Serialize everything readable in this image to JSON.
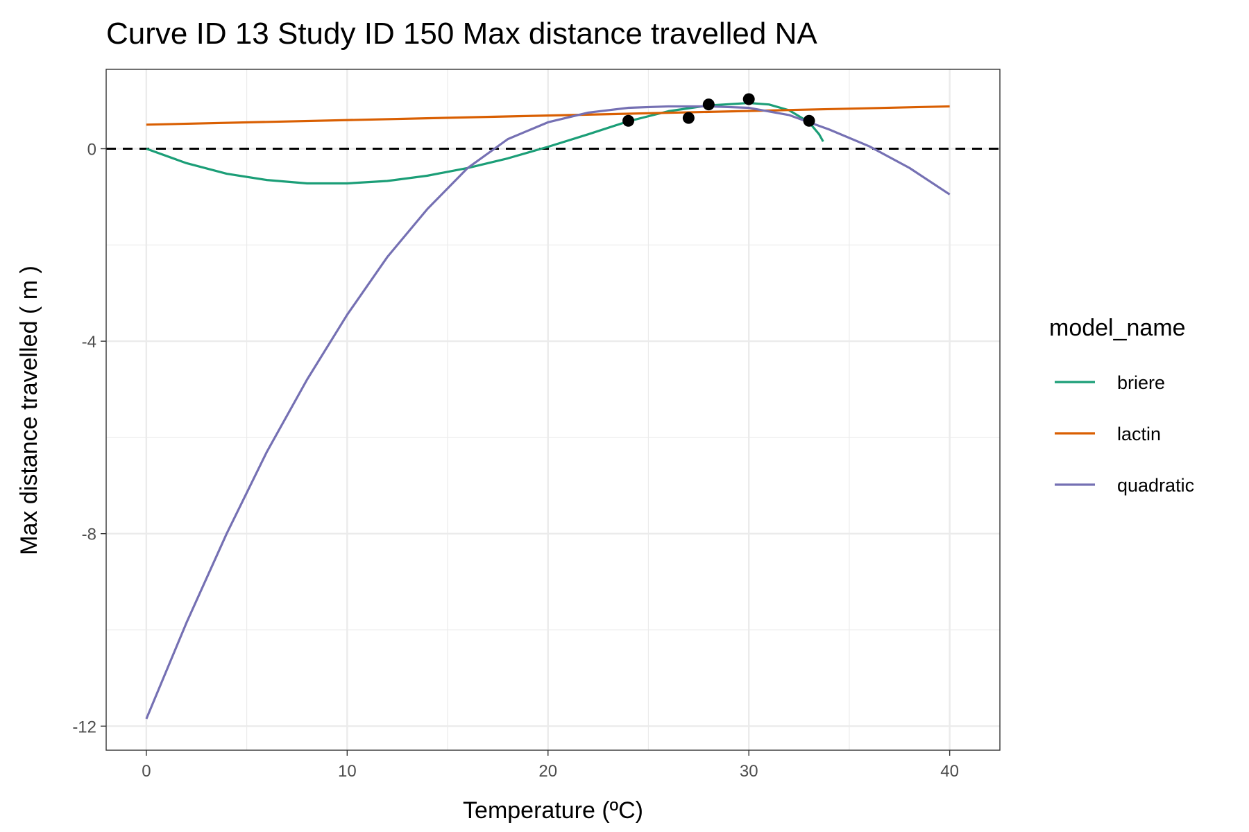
{
  "chart_data": {
    "type": "line",
    "title": "Curve ID 13 Study ID 150 Max distance travelled NA",
    "xlabel": "Temperature (ºC)",
    "ylabel": "Max distance travelled ( m )",
    "xlim": [
      -2,
      42.5
    ],
    "ylim": [
      -12.5,
      1.65
    ],
    "x_ticks": [
      0,
      10,
      20,
      30,
      40
    ],
    "y_ticks": [
      0,
      -4,
      -8,
      -12
    ],
    "x_tick_labels": [
      "0",
      "10",
      "20",
      "30",
      "40"
    ],
    "y_tick_labels": [
      "0",
      "-4",
      "-8",
      "-12"
    ],
    "grid": true,
    "reference_line": {
      "y": 0,
      "style": "dashed",
      "color": "#000000"
    },
    "legend": {
      "title": "model_name",
      "position": "right",
      "entries": [
        "briere",
        "lactin",
        "quadratic"
      ]
    },
    "series": [
      {
        "name": "briere",
        "color": "#1b9e77",
        "x": [
          0,
          2,
          4,
          6,
          8,
          10,
          12,
          14,
          16,
          18,
          20,
          22,
          24,
          26,
          28,
          30,
          31,
          32,
          33,
          33.5,
          33.7
        ],
        "y": [
          0,
          -0.3,
          -0.52,
          -0.65,
          -0.72,
          -0.72,
          -0.67,
          -0.56,
          -0.4,
          -0.2,
          0.04,
          0.3,
          0.57,
          0.78,
          0.9,
          0.95,
          0.92,
          0.8,
          0.55,
          0.3,
          0.15
        ]
      },
      {
        "name": "lactin",
        "color": "#d95f02",
        "x": [
          0,
          40
        ],
        "y": [
          0.5,
          0.88
        ]
      },
      {
        "name": "quadratic",
        "color": "#7570b3",
        "x": [
          0,
          2,
          4,
          6,
          8,
          10,
          12,
          14,
          16,
          18,
          20,
          22,
          24,
          26,
          28,
          30,
          32,
          34,
          36,
          38,
          40
        ],
        "y": [
          -11.85,
          -9.85,
          -8.0,
          -6.3,
          -4.8,
          -3.45,
          -2.25,
          -1.25,
          -0.4,
          0.2,
          0.55,
          0.75,
          0.85,
          0.88,
          0.88,
          0.85,
          0.7,
          0.4,
          0.05,
          -0.4,
          -0.95
        ]
      }
    ],
    "points": {
      "color": "#000000",
      "x": [
        24,
        27,
        28,
        30,
        33
      ],
      "y": [
        0.58,
        0.64,
        0.92,
        1.03,
        0.58
      ]
    }
  }
}
